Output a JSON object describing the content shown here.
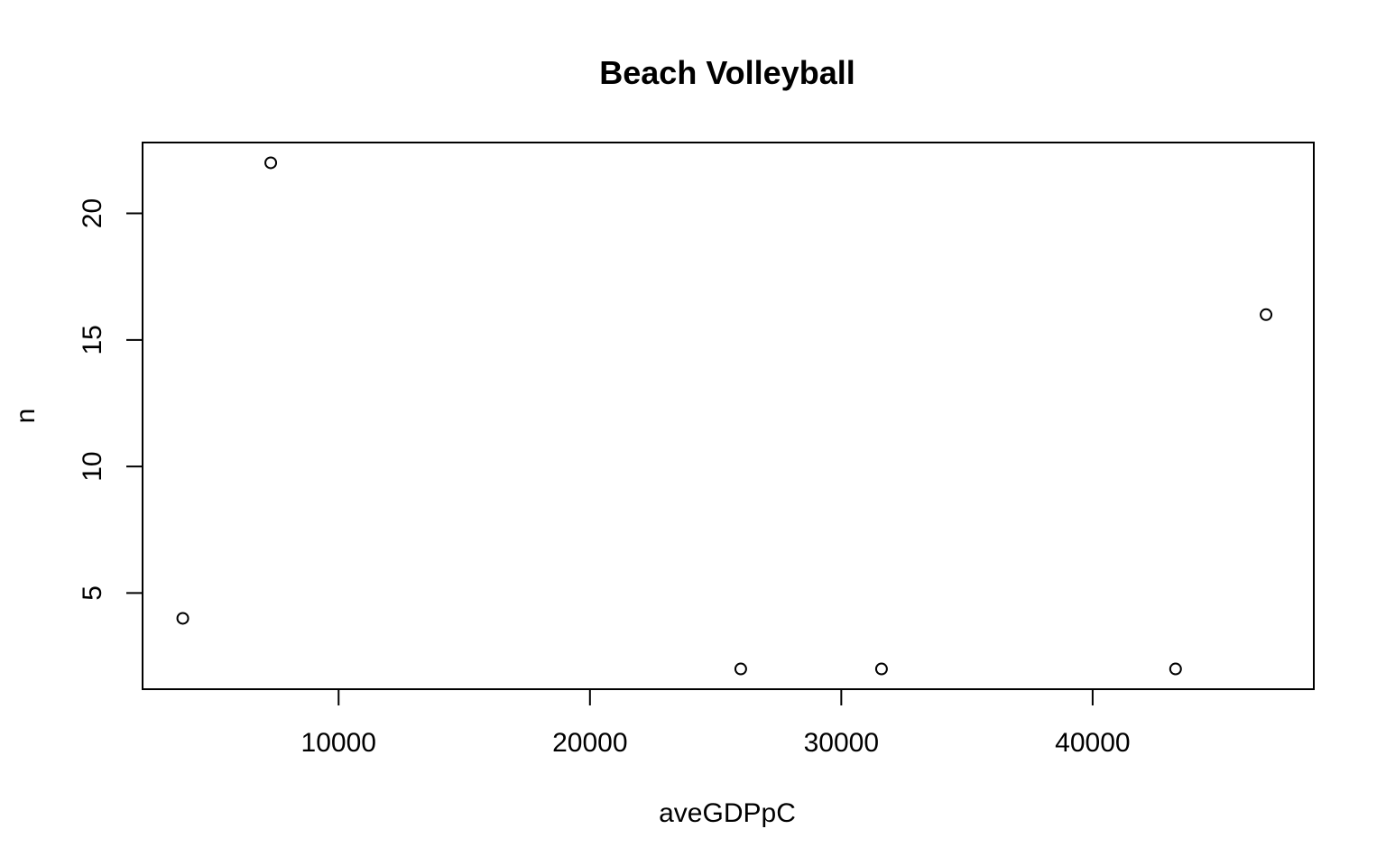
{
  "chart_data": {
    "type": "scatter",
    "title": "Beach Volleyball",
    "xlabel": "aveGDPpC",
    "ylabel": "n",
    "xlim": [
      2200,
      48800
    ],
    "ylim": [
      1.2,
      22.8
    ],
    "xticks": [
      10000,
      20000,
      30000,
      40000
    ],
    "yticks": [
      5,
      10,
      15,
      20
    ],
    "xtick_labels": [
      "10000",
      "20000",
      "30000",
      "40000"
    ],
    "ytick_labels": [
      "5",
      "10",
      "15",
      "20"
    ],
    "grid": false,
    "legend": "none",
    "points": [
      {
        "x": 3800,
        "y": 4
      },
      {
        "x": 7300,
        "y": 22
      },
      {
        "x": 26000,
        "y": 2
      },
      {
        "x": 31600,
        "y": 2
      },
      {
        "x": 43300,
        "y": 2
      },
      {
        "x": 46900,
        "y": 16
      }
    ]
  }
}
